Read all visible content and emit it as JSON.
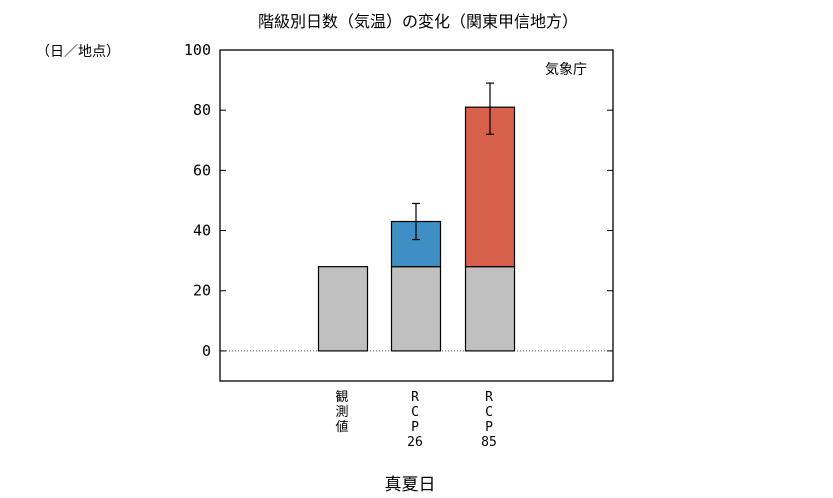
{
  "chart_data": {
    "type": "bar",
    "title": "階級別日数（気温）の変化（関東甲信地方）",
    "unit_label": "（日／地点）",
    "source_label": "気象庁",
    "xlabel": "真夏日",
    "ylabel": "",
    "ylim": [
      -10,
      100
    ],
    "yticks": [
      0,
      20,
      40,
      60,
      80,
      100
    ],
    "grid": false,
    "zero_line": "dotted",
    "categories": [
      {
        "lines": [
          "観",
          "測",
          "値"
        ]
      },
      {
        "lines": [
          "R",
          "C",
          "P",
          "26"
        ]
      },
      {
        "lines": [
          "R",
          "C",
          "P",
          "85"
        ]
      }
    ],
    "series": [
      {
        "values": [
          28,
          28,
          28
        ],
        "color": "#c0c0c0"
      },
      {
        "values": [
          0,
          15,
          53
        ],
        "colors": [
          "#c0c0c0",
          "#3f8fc5",
          "#d8614c"
        ]
      }
    ],
    "error_bars": [
      null,
      {
        "low": 37,
        "high": 49
      },
      {
        "low": 72,
        "high": 89
      }
    ]
  }
}
